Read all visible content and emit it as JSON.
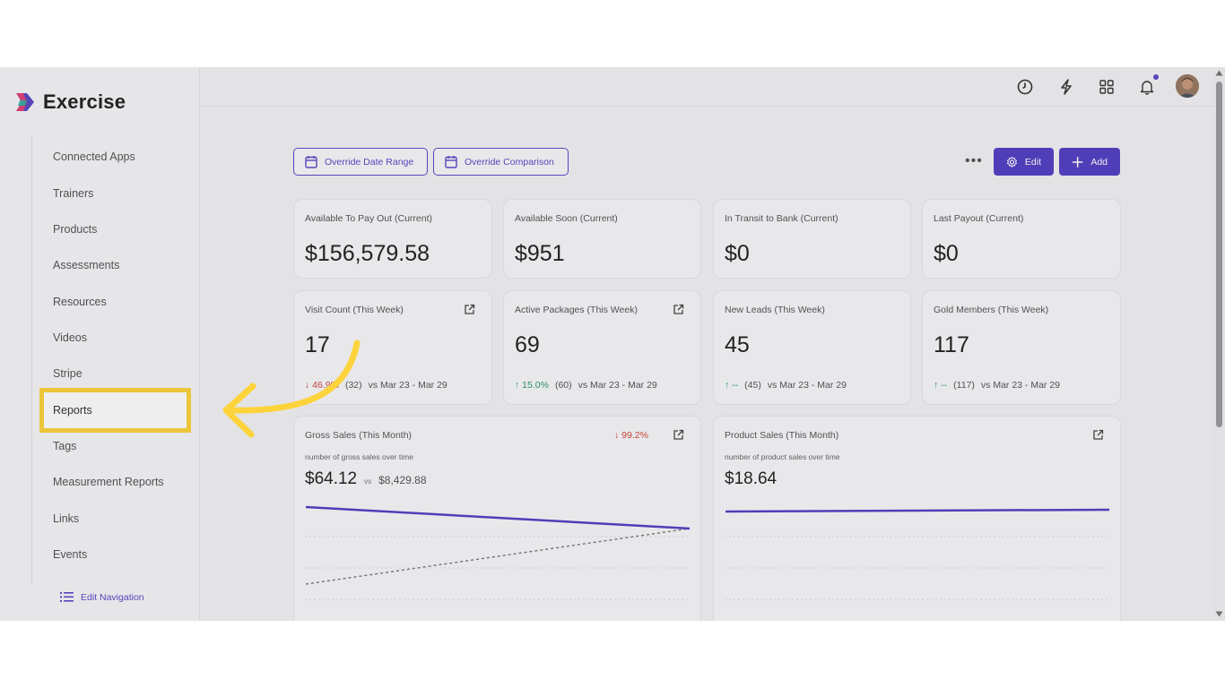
{
  "app": {
    "name": "Exercise"
  },
  "sidebar": {
    "items": [
      {
        "label": "Connected Apps"
      },
      {
        "label": "Trainers"
      },
      {
        "label": "Products"
      },
      {
        "label": "Assessments"
      },
      {
        "label": "Resources"
      },
      {
        "label": "Videos"
      },
      {
        "label": "Stripe"
      },
      {
        "label": "Reports"
      },
      {
        "label": "Tags"
      },
      {
        "label": "Measurement Reports"
      },
      {
        "label": "Links"
      },
      {
        "label": "Events"
      }
    ],
    "highlighted_item": "Reports",
    "edit_nav_label": "Edit Navigation"
  },
  "topbar": {
    "icons": [
      "clock-icon",
      "lightning-icon",
      "grid-icon",
      "bell-icon",
      "avatar"
    ],
    "notification_dot_color": "#5b48c5"
  },
  "toolbar": {
    "override_date_label": "Override Date Range",
    "override_comparison_label": "Override Comparison",
    "more_label": "•••",
    "edit_label": "Edit",
    "add_label": "Add"
  },
  "stats_row1": [
    {
      "title": "Available To Pay Out (Current)",
      "value": "$156,579.58"
    },
    {
      "title": "Available Soon (Current)",
      "value": "$951"
    },
    {
      "title": "In Transit to Bank (Current)",
      "value": "$0"
    },
    {
      "title": "Last Payout (Current)",
      "value": "$0"
    }
  ],
  "stats_row2": [
    {
      "title": "Visit Count (This Week)",
      "value": "17",
      "change": "↓ 46.9%",
      "change_dir": "down",
      "prev": "(32)",
      "range": "vs Mar 23 - Mar 29"
    },
    {
      "title": "Active Packages (This Week)",
      "value": "69",
      "change": "↑ 15.0%",
      "change_dir": "up",
      "prev": "(60)",
      "range": "vs Mar 23 - Mar 29"
    },
    {
      "title": "New Leads (This Week)",
      "value": "45",
      "change": "↑ --",
      "change_dir": "up",
      "prev": "(45)",
      "range": "vs Mar 23 - Mar 29"
    },
    {
      "title": "Gold Members (This Week)",
      "value": "117",
      "change": "↑ --",
      "change_dir": "up",
      "prev": "(117)",
      "range": "vs Mar 23 - Mar 29"
    }
  ],
  "gross_sales": {
    "title": "Gross Sales (This Month)",
    "change": "↓ 99.2%",
    "subtitle": "number of gross sales over time",
    "value": "$64.12",
    "vs_label": "vs",
    "vs_value": "$8,429.88"
  },
  "product_sales": {
    "title": "Product Sales (This Month)",
    "subtitle": "number of product sales over time",
    "value": "$18.64"
  },
  "colors": {
    "accent": "#5440c4",
    "highlight": "#fdd33c",
    "down": "#d2453a",
    "up": "#2e9a6a"
  }
}
